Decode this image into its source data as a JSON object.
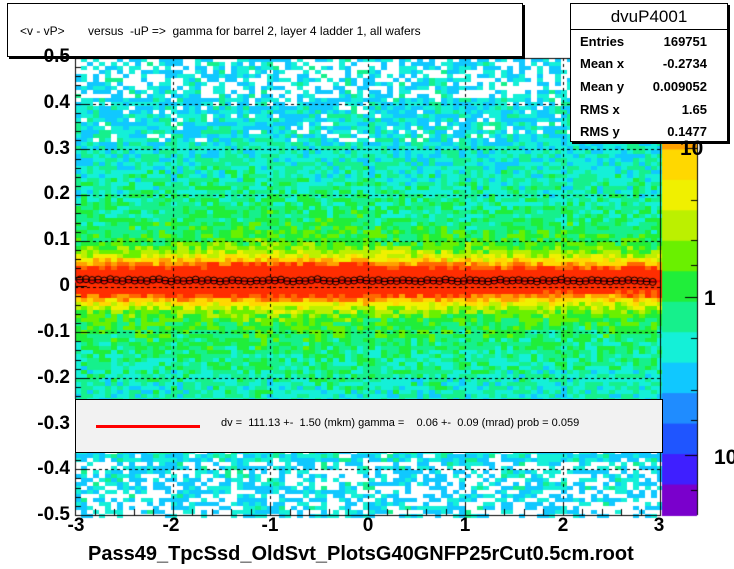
{
  "title": "<v - vP>       versus  -uP =>  gamma for barrel 2, layer 4 ladder 1, all wafers",
  "stats": {
    "name": "dvuP4001",
    "rows": [
      {
        "label": "Entries",
        "value": "169751"
      },
      {
        "label": "Mean x",
        "value": "-0.2734"
      },
      {
        "label": "Mean y",
        "value": "0.009052"
      },
      {
        "label": "RMS x",
        "value": "1.65"
      },
      {
        "label": "RMS y",
        "value": "0.1477"
      }
    ]
  },
  "legend": {
    "text": "dv =  111.13 +-  1.50 (mkm) gamma =    0.06 +-  0.09 (mrad) prob = 0.059",
    "line_color": "#ff0000"
  },
  "colors": {
    "frame_bg": "#ffffff",
    "fit_line": "#ff0000",
    "profile_marker": "#000000",
    "palette": [
      "#7a00cc",
      "#3f1fff",
      "#1f55ff",
      "#1f8cff",
      "#10c8ff",
      "#14f0d8",
      "#16f08c",
      "#20ee3a",
      "#6af000",
      "#bcf000",
      "#f0f000",
      "#ffd800",
      "#ffa000",
      "#ff6800",
      "#ff2d00"
    ]
  },
  "chart_data": {
    "type": "heatmap",
    "title": "<v - vP>       versus  -uP =>  gamma for barrel 2, layer 4 ladder 1, all wafers",
    "xlabel": "Pass49_TpcSsd_OldSvt_PlotsG40GNFP25rCut0.5cm.root",
    "ylabel": "",
    "xlim": [
      -3,
      3
    ],
    "ylim": [
      -0.5,
      0.5
    ],
    "x_ticks": [
      "-3",
      "-2",
      "-1",
      "0",
      "1",
      "2",
      "3"
    ],
    "y_ticks": [
      "-0.5",
      "-0.4",
      "-0.3",
      "-0.2",
      "-0.1",
      "0",
      "0.1",
      "0.2",
      "0.3",
      "0.4",
      "0.5"
    ],
    "z_scale": "log",
    "z_ticks": [
      "10",
      "1",
      "10"
    ],
    "grid": true,
    "band_center_y": 0.012,
    "fit": {
      "type": "line",
      "intercept": 0.0111,
      "slope": 6e-05,
      "color": "#ff0000"
    },
    "profile": {
      "x_start": -2.95,
      "x_step": 0.0625,
      "y": [
        0.015,
        0.016,
        0.014,
        0.015,
        0.013,
        0.016,
        0.014,
        0.012,
        0.015,
        0.013,
        0.014,
        0.012,
        0.015,
        0.016,
        0.013,
        0.011,
        0.014,
        0.012,
        0.013,
        0.015,
        0.012,
        0.014,
        0.013,
        0.011,
        0.012,
        0.014,
        0.013,
        0.012,
        0.011,
        0.013,
        0.012,
        0.014,
        0.013,
        0.015,
        0.012,
        0.011,
        0.013,
        0.012,
        0.014,
        0.016,
        0.013,
        0.012,
        0.011,
        0.014,
        0.012,
        0.013,
        0.015,
        0.013,
        0.012,
        0.014,
        0.011,
        0.013,
        0.012,
        0.014,
        0.013,
        0.012,
        0.011,
        0.014,
        0.013,
        0.012,
        0.015,
        0.013,
        0.011,
        0.012,
        0.014,
        0.013,
        0.012,
        0.011,
        0.013,
        0.015,
        0.012,
        0.013,
        0.014,
        0.012,
        0.013,
        0.011,
        0.014,
        0.012,
        0.013,
        0.015,
        0.012,
        0.013,
        0.011,
        0.012,
        0.014,
        0.013,
        0.012,
        0.011,
        0.013,
        0.012,
        0.014,
        0.013,
        0.012,
        0.011,
        0.01
      ]
    }
  }
}
